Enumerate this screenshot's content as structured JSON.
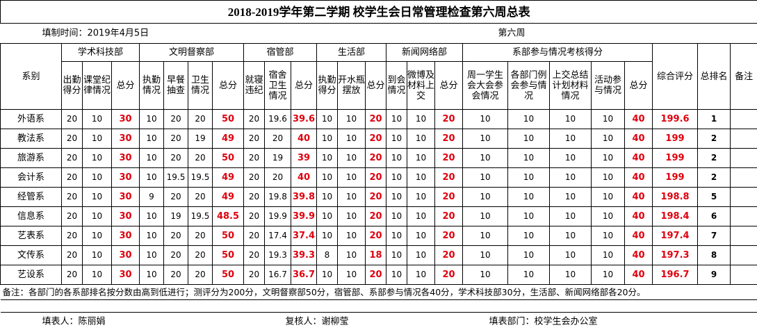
{
  "title": "2018-2019学年第二学期 校学生会日常管理检查第六周总表",
  "info": {
    "date": "填制时间：2019年4月5日",
    "week": "第六周"
  },
  "table": {
    "groups": [
      {
        "name": "系别"
      },
      {
        "name": "学术科技部",
        "columns": [
          "出勤得分",
          "课堂纪律情况",
          "总分"
        ]
      },
      {
        "name": "文明督察部",
        "columns": [
          "执勤情况",
          "早餐抽查",
          "卫生情况",
          "总分"
        ]
      },
      {
        "name": "宿管部",
        "columns": [
          "就寝违纪",
          "宿舍卫生情况",
          "总分"
        ]
      },
      {
        "name": "生活部",
        "columns": [
          "执勤得分",
          "开水瓶摆放",
          "总分"
        ]
      },
      {
        "name": "新闻网络部",
        "columns": [
          "到会情况",
          "微博及材料上交",
          "总分"
        ]
      },
      {
        "name": "系部参与情况考核得分",
        "columns": [
          "周一学生会大会参会情况",
          "各部门例会参与情况",
          "上交总结计划材料情况",
          "活动参与情况",
          "总分"
        ]
      },
      {
        "name": "综合评分"
      },
      {
        "name": "总排名"
      },
      {
        "name": "备注"
      }
    ],
    "rows": [
      {
        "dept": "外语系",
        "values": [
          20,
          10,
          30,
          10,
          20,
          20,
          50,
          20,
          19.6,
          39.6,
          10,
          10,
          20,
          10,
          10,
          20,
          10,
          10,
          10,
          10,
          40,
          199.6,
          1
        ]
      },
      {
        "dept": "教法系",
        "values": [
          20,
          10,
          30,
          10,
          20,
          19,
          49,
          20,
          20,
          40,
          10,
          10,
          20,
          10,
          10,
          20,
          10,
          10,
          10,
          10,
          40,
          199,
          2
        ]
      },
      {
        "dept": "旅游系",
        "values": [
          20,
          10,
          30,
          10,
          20,
          20,
          50,
          20,
          19,
          39,
          10,
          10,
          20,
          10,
          10,
          20,
          10,
          10,
          10,
          10,
          40,
          199,
          2
        ]
      },
      {
        "dept": "会计系",
        "values": [
          20,
          10,
          30,
          10,
          19.5,
          19.5,
          49,
          20,
          20,
          40,
          10,
          10,
          20,
          10,
          10,
          20,
          10,
          10,
          10,
          10,
          40,
          199,
          2
        ]
      },
      {
        "dept": "经管系",
        "values": [
          20,
          10,
          30,
          9,
          20,
          20,
          49,
          20,
          19.8,
          39.8,
          10,
          10,
          20,
          10,
          10,
          20,
          10,
          10,
          10,
          10,
          40,
          198.8,
          5
        ]
      },
      {
        "dept": "信息系",
        "values": [
          20,
          10,
          30,
          10,
          19,
          19.5,
          48.5,
          20,
          19.9,
          39.9,
          10,
          10,
          20,
          10,
          10,
          20,
          10,
          10,
          10,
          10,
          40,
          198.4,
          6
        ]
      },
      {
        "dept": "艺表系",
        "values": [
          20,
          10,
          30,
          10,
          20,
          20,
          50,
          20,
          17.4,
          37.4,
          10,
          10,
          20,
          10,
          10,
          20,
          10,
          10,
          10,
          10,
          40,
          197.4,
          7
        ]
      },
      {
        "dept": "文传系",
        "values": [
          20,
          10,
          30,
          10,
          20,
          20,
          50,
          20,
          19.3,
          39.3,
          8,
          10,
          18,
          10,
          10,
          20,
          10,
          10,
          10,
          10,
          40,
          197.3,
          8
        ]
      },
      {
        "dept": "艺设系",
        "values": [
          20,
          10,
          30,
          10,
          20,
          20,
          50,
          20,
          16.7,
          36.7,
          10,
          10,
          20,
          10,
          10,
          20,
          10,
          10,
          10,
          10,
          40,
          196.7,
          9
        ]
      }
    ]
  },
  "note": "备注：各部门的各系部排名按分数由高到低进行；测评分为200分，文明督察部50分，宿管部、系部参与情况各40分，学术科技部30分，生活部、新闻网络部各20分。",
  "footer": {
    "filler": "填表人：陈丽娟",
    "reviewer": "复核人：谢柳莹",
    "dept": "填表部门：校学生会办公室"
  }
}
